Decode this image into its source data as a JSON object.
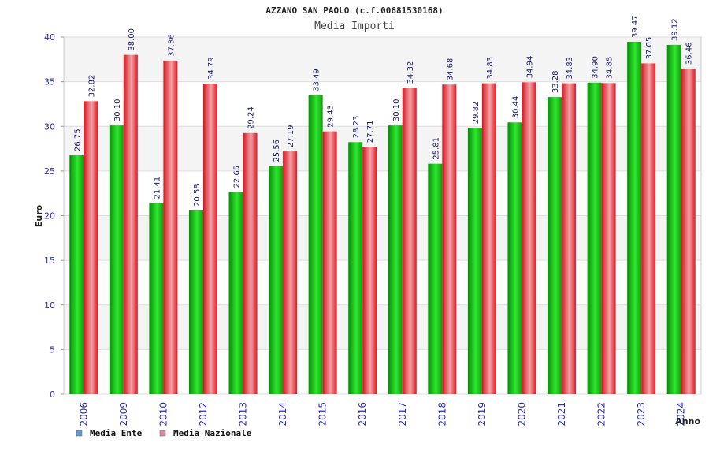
{
  "chart_data": {
    "type": "bar",
    "title": "AZZANO SAN PAOLO (c.f.00681530168)",
    "subtitle": "Media Importi",
    "xlabel": "Anno",
    "ylabel": "Euro",
    "ylim": [
      0,
      40
    ],
    "yticks": [
      "0",
      "5",
      "10",
      "15",
      "20",
      "25",
      "30",
      "35",
      "40"
    ],
    "grid": true,
    "legend_position": "bottom-left",
    "categories": [
      "2006",
      "2009",
      "2010",
      "2012",
      "2013",
      "2014",
      "2015",
      "2016",
      "2017",
      "2018",
      "2019",
      "2020",
      "2021",
      "2022",
      "2023",
      "2024"
    ],
    "series": [
      {
        "name": "Media Ente",
        "color": "#1ec81e",
        "values": [
          26.75,
          30.1,
          21.41,
          20.58,
          22.65,
          25.56,
          33.49,
          28.23,
          30.1,
          25.81,
          29.82,
          30.44,
          33.28,
          34.9,
          39.47,
          39.12
        ],
        "labels": [
          "26.75",
          "30.10",
          "21.41",
          "20.58",
          "22.65",
          "25.56",
          "33.49",
          "28.23",
          "30.10",
          "25.81",
          "29.82",
          "30.44",
          "33.28",
          "34.90",
          "39.47",
          "39.12"
        ]
      },
      {
        "name": "Media Nazionale",
        "color": "#e8202a",
        "values": [
          32.82,
          38.0,
          37.36,
          34.79,
          29.24,
          27.19,
          29.43,
          27.71,
          34.32,
          34.68,
          34.83,
          34.94,
          34.83,
          34.85,
          37.05,
          36.46
        ],
        "labels": [
          "32.82",
          "38.00",
          "37.36",
          "34.79",
          "29.24",
          "27.19",
          "29.43",
          "27.71",
          "34.32",
          "34.68",
          "34.83",
          "34.94",
          "34.83",
          "34.85",
          "37.05",
          "36.46"
        ]
      }
    ],
    "legend": [
      {
        "label": "Media Ente",
        "swatch_color": "#5b9bd5"
      },
      {
        "label": "Media Nazionale",
        "swatch_color": "#d98aa6"
      }
    ]
  }
}
